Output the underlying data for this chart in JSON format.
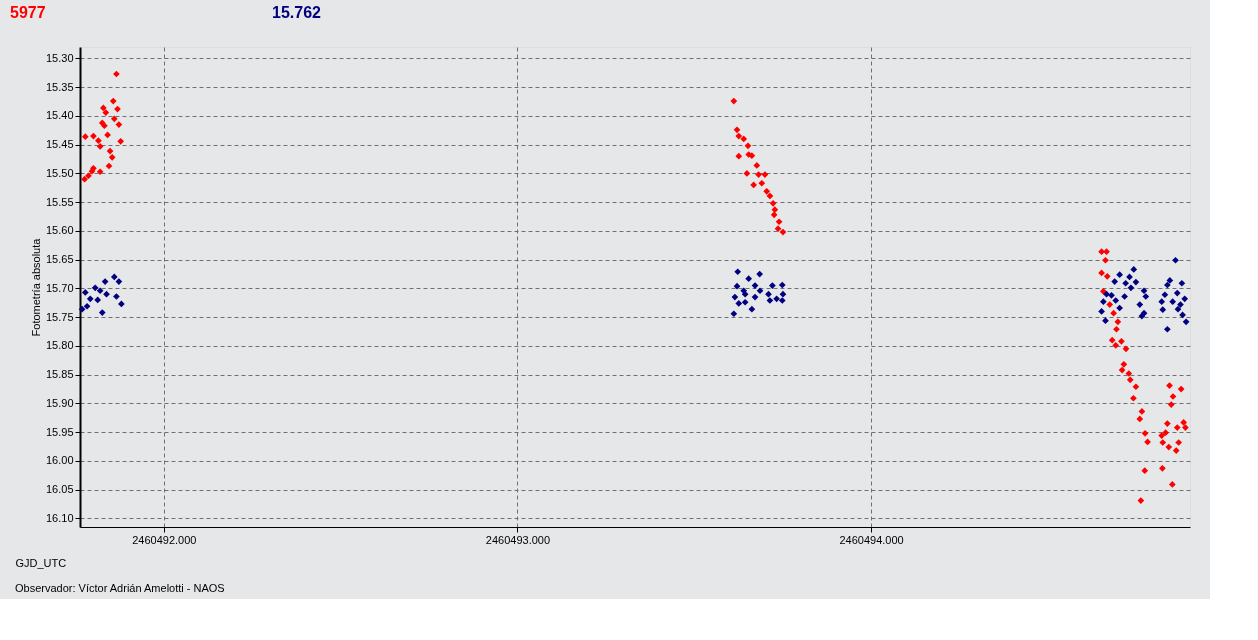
{
  "chart_data": {
    "type": "scatter",
    "xlabel": "GJD_UTC",
    "ylabel": "Fotometría absoluta",
    "annotations": [
      "Observador: Víctor Adrián Amelotti - NAOS"
    ],
    "xlim": [
      2460491.763,
      2460494.902
    ],
    "ylim": [
      16.115,
      15.28
    ],
    "xticks": [
      {
        "value": 2460492,
        "label": "2460492.000"
      },
      {
        "value": 2460493,
        "label": "2460493.000"
      },
      {
        "value": 2460494,
        "label": "2460494.000"
      }
    ],
    "yticks": [
      {
        "value": 15.3,
        "label": "15.30"
      },
      {
        "value": 15.35,
        "label": "15.35"
      },
      {
        "value": 15.4,
        "label": "15.40"
      },
      {
        "value": 15.45,
        "label": "15.45"
      },
      {
        "value": 15.5,
        "label": "15.50"
      },
      {
        "value": 15.55,
        "label": "15.55"
      },
      {
        "value": 15.6,
        "label": "15.60"
      },
      {
        "value": 15.65,
        "label": "15.65"
      },
      {
        "value": 15.7,
        "label": "15.70"
      },
      {
        "value": 15.75,
        "label": "15.75"
      },
      {
        "value": 15.8,
        "label": "15.80"
      },
      {
        "value": 15.85,
        "label": "15.85"
      },
      {
        "value": 15.9,
        "label": "15.90"
      },
      {
        "value": 15.95,
        "label": "15.95"
      },
      {
        "value": 16.0,
        "label": "16.00"
      },
      {
        "value": 16.05,
        "label": "16.05"
      },
      {
        "value": 16.1,
        "label": "16.10"
      }
    ],
    "grid": true,
    "legend": "top left",
    "marker": "diamond",
    "series": [
      {
        "name": "5977",
        "color": "#ff0000",
        "x": [
          2460491.866,
          2460491.857,
          2460491.869,
          2460491.829,
          2460491.836,
          2460491.86,
          2460491.873,
          2460491.826,
          2460491.832,
          2460491.841,
          2460491.878,
          2460491.778,
          2460491.801,
          2460491.815,
          2460491.82,
          2460491.848,
          2460491.854,
          2460491.845,
          2460491.801,
          2460491.797,
          2460491.82,
          2460491.787,
          2460491.776,
          2460493.612,
          2460493.621,
          2460493.626,
          2460493.64,
          2460493.652,
          2460493.626,
          2460493.654,
          2460493.663,
          2460493.677,
          2460493.649,
          2460493.682,
          2460493.7,
          2460493.668,
          2460493.691,
          2460493.705,
          2460493.714,
          2460493.723,
          2460493.728,
          2460493.726,
          2460493.74,
          2460493.737,
          2460493.751,
          2460494.652,
          2460494.666,
          2460494.663,
          2460494.652,
          2460494.668,
          2460494.657,
          2460494.675,
          2460494.686,
          2460494.698,
          2460494.694,
          2460494.682,
          2460494.708,
          2460494.692,
          2460494.721,
          2460494.715,
          2460494.71,
          2460494.729,
          2460494.733,
          2460494.749,
          2460494.742,
          2460494.766,
          2460494.76,
          2460494.775,
          2460494.782,
          2460494.774,
          2460494.763,
          2460494.844,
          2460494.877,
          2460494.854,
          2460494.849,
          2460494.838,
          2460494.866,
          2460494.884,
          2460494.889,
          2460494.833,
          2460494.822,
          2460494.825,
          2460494.842,
          2460494.87,
          2460494.863,
          2460494.824,
          2460494.852
        ],
        "values": [
          15.327,
          15.374,
          15.388,
          15.386,
          15.394,
          15.405,
          15.415,
          15.412,
          15.417,
          15.433,
          15.444,
          15.436,
          15.435,
          15.443,
          15.453,
          15.461,
          15.472,
          15.487,
          15.491,
          15.496,
          15.497,
          15.504,
          15.51,
          15.374,
          15.424,
          15.435,
          15.44,
          15.452,
          15.47,
          15.467,
          15.469,
          15.486,
          15.5,
          15.502,
          15.502,
          15.52,
          15.517,
          15.531,
          15.539,
          15.552,
          15.563,
          15.572,
          15.584,
          15.596,
          15.602,
          15.636,
          15.636,
          15.651,
          15.673,
          15.679,
          15.705,
          15.728,
          15.743,
          15.758,
          15.771,
          15.79,
          15.792,
          15.799,
          15.805,
          15.832,
          15.842,
          15.848,
          15.859,
          15.871,
          15.891,
          15.914,
          15.927,
          15.952,
          15.967,
          16.017,
          16.069,
          15.869,
          15.875,
          15.888,
          15.902,
          15.935,
          15.942,
          15.933,
          15.942,
          15.951,
          15.956,
          15.968,
          15.976,
          15.968,
          15.982,
          16.013,
          16.041
        ]
      },
      {
        "name": "15.762",
        "color": "#000080",
        "x": [
          2460491.86,
          2460491.873,
          2460491.834,
          2460491.806,
          2460491.778,
          2460491.82,
          2460491.838,
          2460491.866,
          2460491.792,
          2460491.813,
          2460491.88,
          2460491.783,
          2460491.769,
          2460491.826,
          2460493.623,
          2460493.685,
          2460493.654,
          2460493.621,
          2460493.672,
          2460493.721,
          2460493.749,
          2460493.64,
          2460493.686,
          2460493.71,
          2460493.751,
          2460493.615,
          2460493.644,
          2460493.672,
          2460493.733,
          2460493.626,
          2460493.644,
          2460493.714,
          2460493.749,
          2460493.663,
          2460493.612,
          2460494.743,
          2460494.703,
          2460494.731,
          2460494.689,
          2460494.72,
          2460494.749,
          2460494.735,
          2460494.666,
          2460494.68,
          2460494.717,
          2460494.772,
          2460494.777,
          2460494.657,
          2460494.692,
          2460494.76,
          2460494.703,
          2460494.652,
          2460494.772,
          2460494.766,
          2460494.663,
          2460494.861,
          2460494.845,
          2460494.879,
          2460494.838,
          2460494.866,
          2460494.831,
          2460494.887,
          2460494.853,
          2460494.822,
          2460494.875,
          2460494.825,
          2460494.868,
          2460494.881,
          2460494.891,
          2460494.838
        ],
        "values": [
          15.68,
          15.688,
          15.688,
          15.699,
          15.707,
          15.704,
          15.71,
          15.714,
          15.718,
          15.72,
          15.727,
          15.731,
          15.736,
          15.742,
          15.671,
          15.675,
          15.683,
          15.696,
          15.695,
          15.695,
          15.694,
          15.704,
          15.704,
          15.71,
          15.71,
          15.715,
          15.71,
          15.715,
          15.718,
          15.726,
          15.724,
          15.721,
          15.721,
          15.736,
          15.744,
          15.667,
          15.676,
          15.68,
          15.688,
          15.691,
          15.689,
          15.699,
          15.71,
          15.712,
          15.714,
          15.704,
          15.714,
          15.723,
          15.721,
          15.728,
          15.734,
          15.74,
          15.743,
          15.748,
          15.756,
          15.651,
          15.686,
          15.691,
          15.694,
          15.708,
          15.711,
          15.718,
          15.723,
          15.723,
          15.728,
          15.737,
          15.736,
          15.746,
          15.758,
          15.771
        ]
      }
    ]
  }
}
